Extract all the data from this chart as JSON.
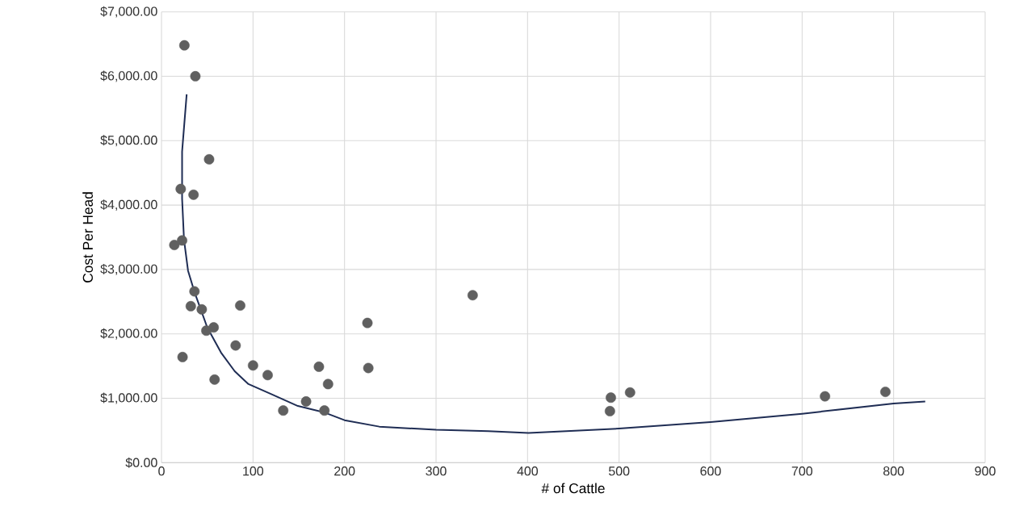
{
  "chart_data": {
    "type": "scatter",
    "xlabel": "# of Cattle",
    "ylabel": "Cost Per Head",
    "xlim": [
      0,
      900
    ],
    "xticks": [
      0,
      100,
      200,
      300,
      400,
      500,
      600,
      700,
      800,
      900
    ],
    "ylim": [
      0,
      7000
    ],
    "yticks": [
      {
        "value": 0,
        "label": "$0.00"
      },
      {
        "value": 1000,
        "label": "$1,000.00"
      },
      {
        "value": 2000,
        "label": "$2,000.00"
      },
      {
        "value": 3000,
        "label": "$3,000.00"
      },
      {
        "value": 4000,
        "label": "$4,000.00"
      },
      {
        "value": 5000,
        "label": "$5,000.00"
      },
      {
        "value": 6000,
        "label": "$6,000.00"
      },
      {
        "value": 7000,
        "label": "$7,000.00"
      }
    ],
    "grid": true,
    "series": [
      {
        "color": "#606060",
        "marker": "circle",
        "x": [
          25,
          37,
          52,
          21,
          35,
          22.5,
          14,
          36,
          32,
          44,
          86,
          49,
          57,
          23,
          81,
          58,
          100,
          116,
          225,
          226,
          133,
          158,
          172,
          182,
          178,
          340,
          491,
          490,
          512,
          725,
          791
        ],
        "values": [
          6480,
          6000,
          4710,
          4250,
          4160,
          3450,
          3380,
          2660,
          2430,
          2380,
          2440,
          2050,
          2100,
          1640,
          1820,
          1290,
          1510,
          1360,
          2170,
          1470,
          810,
          950,
          1490,
          1220,
          810,
          2600,
          1010,
          800,
          1090,
          1030,
          1100
        ]
      },
      {
        "type": "line",
        "color": "#1f2d54",
        "marker": "none",
        "x": [
          27.5,
          22.5,
          22.5,
          24.6,
          29,
          36.5,
          50,
          65,
          80,
          95,
          119,
          149,
          178,
          200,
          238,
          300,
          357,
          401,
          500,
          600,
          700,
          800,
          834.5
        ],
        "values": [
          5720,
          4830,
          4100,
          3460,
          2980,
          2630,
          2100,
          1710,
          1420,
          1220,
          1070,
          880,
          780,
          660,
          560,
          510,
          490,
          460,
          530,
          630,
          760,
          920,
          950
        ]
      }
    ]
  }
}
